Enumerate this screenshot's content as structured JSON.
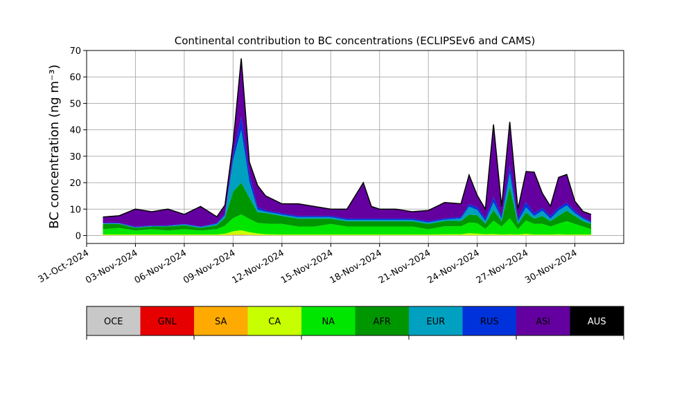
{
  "chart_data": {
    "type": "area",
    "title": "Continental contribution to BC concentrations (ECLIPSEv6 and CAMS)",
    "xlabel": "",
    "ylabel": "BC concentration (ng m⁻³)",
    "xlim": [
      "2024-10-31",
      "2024-12-03"
    ],
    "ylim": [
      -3,
      70
    ],
    "yticks": [
      0,
      10,
      20,
      30,
      40,
      50,
      60,
      70
    ],
    "xticks": [
      "31-Oct-2024",
      "03-Nov-2024",
      "06-Nov-2024",
      "09-Nov-2024",
      "12-Nov-2024",
      "15-Nov-2024",
      "18-Nov-2024",
      "21-Nov-2024",
      "24-Nov-2024",
      "27-Nov-2024",
      "30-Nov-2024"
    ],
    "grid": true,
    "stack_order": [
      "AUS",
      "OCE",
      "GNL",
      "SA",
      "CA",
      "NA",
      "AFR",
      "EUR",
      "RUS",
      "ASI"
    ],
    "colors": {
      "OCE": "#c8c8c8",
      "GNL": "#e60000",
      "SA": "#ffaa00",
      "CA": "#c8ff00",
      "NA": "#00e600",
      "AFR": "#009600",
      "EUR": "#00a0c0",
      "RUS": "#0032dc",
      "ASI": "#6400a0",
      "AUS": "#000000"
    },
    "x": [
      "2024-11-01",
      "2024-11-02",
      "2024-11-03",
      "2024-11-04",
      "2024-11-05",
      "2024-11-06",
      "2024-11-07",
      "2024-11-08",
      "2024-11-08 12:00",
      "2024-11-09",
      "2024-11-09 12:00",
      "2024-11-10",
      "2024-11-10 12:00",
      "2024-11-11",
      "2024-11-12",
      "2024-11-13",
      "2024-11-14",
      "2024-11-15",
      "2024-11-16",
      "2024-11-17",
      "2024-11-17 12:00",
      "2024-11-18",
      "2024-11-19",
      "2024-11-20",
      "2024-11-21",
      "2024-11-22",
      "2024-11-23",
      "2024-11-23 12:00",
      "2024-11-24",
      "2024-11-24 12:00",
      "2024-11-25",
      "2024-11-25 12:00",
      "2024-11-26",
      "2024-11-26 12:00",
      "2024-11-27",
      "2024-11-27 12:00",
      "2024-11-28",
      "2024-11-28 12:00",
      "2024-11-29",
      "2024-11-29 12:00",
      "2024-11-30",
      "2024-11-30 12:00",
      "2024-12-01"
    ],
    "series": [
      {
        "name": "AUS",
        "values": [
          0,
          0,
          0,
          0,
          0,
          0,
          0,
          0,
          0,
          0,
          0,
          0,
          0,
          0,
          0,
          0,
          0,
          0,
          0,
          0,
          0,
          0,
          0,
          0,
          0,
          0,
          0,
          0,
          0,
          0,
          0,
          0,
          0,
          0,
          0,
          0,
          0,
          0,
          0,
          0,
          0,
          0,
          0
        ]
      },
      {
        "name": "OCE",
        "values": [
          0.1,
          0.1,
          0.1,
          0.1,
          0.1,
          0.1,
          0.1,
          0.1,
          0.1,
          0.2,
          0.2,
          0.2,
          0.1,
          0.1,
          0.1,
          0.1,
          0.1,
          0.1,
          0.1,
          0.1,
          0.1,
          0.1,
          0.1,
          0.1,
          0.1,
          0.1,
          0.1,
          0.1,
          0.1,
          0.1,
          0.1,
          0.1,
          0.1,
          0.1,
          0.1,
          0.1,
          0.1,
          0.1,
          0.1,
          0.1,
          0.1,
          0.1,
          0.1
        ]
      },
      {
        "name": "GNL",
        "values": [
          0,
          0,
          0,
          0,
          0,
          0,
          0,
          0,
          0,
          0,
          0,
          0,
          0,
          0,
          0,
          0,
          0,
          0,
          0,
          0,
          0,
          0,
          0,
          0,
          0,
          0,
          0,
          0,
          0,
          0,
          0,
          0,
          0,
          0,
          0,
          0,
          0,
          0,
          0,
          0,
          0,
          0,
          0
        ]
      },
      {
        "name": "SA",
        "values": [
          0,
          0,
          0,
          0,
          0,
          0,
          0,
          0,
          0.1,
          0.2,
          0.3,
          0.1,
          0.1,
          0,
          0,
          0,
          0,
          0,
          0,
          0,
          0,
          0,
          0,
          0,
          0,
          0,
          0,
          0,
          0,
          0,
          0,
          0,
          0,
          0,
          0,
          0,
          0,
          0,
          0,
          0,
          0,
          0,
          0
        ]
      },
      {
        "name": "CA",
        "values": [
          0.3,
          0.3,
          0.3,
          0.3,
          0.3,
          0.3,
          0.3,
          0.3,
          0.5,
          1.2,
          1.5,
          1,
          0.6,
          0.4,
          0.3,
          0.3,
          0.3,
          0.3,
          0.3,
          0.3,
          0.3,
          0.3,
          0.3,
          0.3,
          0.3,
          0.4,
          0.4,
          0.8,
          0.6,
          0.4,
          0.5,
          0.3,
          0.4,
          0.3,
          0.6,
          0.3,
          0.3,
          0.3,
          0.4,
          0.3,
          0.3,
          0.3,
          0.3
        ]
      },
      {
        "name": "NA",
        "values": [
          2,
          2.5,
          1.5,
          2,
          1.5,
          2,
          1.5,
          2,
          3,
          5,
          6,
          5,
          4,
          4,
          4,
          3,
          3,
          4,
          3,
          3,
          3,
          3,
          3,
          3,
          2,
          3,
          3,
          4,
          4,
          2,
          5,
          3,
          6,
          2,
          5,
          4,
          4,
          3,
          4,
          5,
          4,
          3,
          2
        ]
      },
      {
        "name": "AFR",
        "values": [
          2,
          1.5,
          1,
          1,
          1.5,
          1.5,
          1,
          1.5,
          3,
          10,
          12,
          8,
          4,
          4,
          3,
          3,
          3,
          2,
          2,
          2,
          2,
          2,
          2,
          2,
          2,
          2,
          2,
          3,
          3,
          2,
          4,
          2,
          12,
          2,
          3,
          2,
          3,
          2,
          3,
          4,
          3,
          2,
          2
        ]
      },
      {
        "name": "EUR",
        "values": [
          0.2,
          0.2,
          0.2,
          0.2,
          0.2,
          0.3,
          0.3,
          0.5,
          1,
          12,
          20,
          6,
          1,
          0.5,
          0.5,
          0.5,
          0.5,
          0.5,
          0.5,
          0.5,
          0.5,
          0.5,
          0.5,
          0.5,
          0.5,
          0.5,
          1,
          3,
          2,
          1,
          3,
          1,
          5,
          1,
          2,
          1,
          2,
          1,
          2,
          2,
          1,
          1,
          0.5
        ]
      },
      {
        "name": "RUS",
        "values": [
          0.2,
          0.2,
          0.2,
          0.2,
          0.2,
          0.2,
          0.2,
          0.3,
          0.5,
          2,
          5,
          3,
          1,
          0.5,
          0.5,
          0.5,
          0.5,
          0.5,
          0.5,
          0.5,
          0.5,
          0.5,
          0.5,
          0.5,
          0.5,
          0.5,
          0.5,
          1,
          1,
          1,
          2,
          1,
          3,
          1,
          2,
          1,
          1,
          1,
          1,
          1,
          1,
          0.5,
          0.5
        ]
      },
      {
        "name": "ASI",
        "values": [
          2.2,
          2.7,
          6.7,
          5.2,
          6.2,
          3.6,
          7.6,
          2.4,
          3.3,
          4.4,
          22,
          4.5,
          8.2,
          5.5,
          3.6,
          4.6,
          3.6,
          2.6,
          3.6,
          13.6,
          4.6,
          3.6,
          3.6,
          2.6,
          4.1,
          6,
          5,
          11,
          4.5,
          3.5,
          27.4,
          3.6,
          16.5,
          3.6,
          11.5,
          15.6,
          5.6,
          3.7,
          11.5,
          10.7,
          3.6,
          2.2,
          2.6
        ]
      }
    ]
  }
}
